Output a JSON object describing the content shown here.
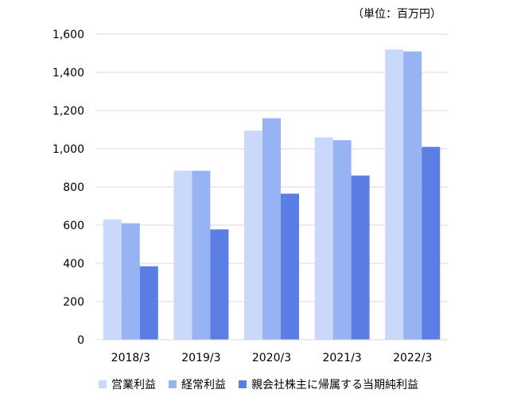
{
  "chart_data": {
    "type": "bar",
    "unit_note": "（単位：百万円）",
    "categories": [
      "2018/3",
      "2019/3",
      "2020/3",
      "2021/3",
      "2022/3"
    ],
    "series": [
      {
        "name": "営業利益",
        "color": "#c9d8fb",
        "values": [
          630,
          885,
          1095,
          1060,
          1520
        ]
      },
      {
        "name": "経常利益",
        "color": "#98b3f4",
        "values": [
          610,
          885,
          1160,
          1045,
          1510
        ]
      },
      {
        "name": "親会社株主に帰属する当期純利益",
        "color": "#5b7ee5",
        "values": [
          385,
          578,
          765,
          860,
          1010
        ]
      }
    ],
    "yticks": [
      "0",
      "200",
      "400",
      "600",
      "800",
      "1,000",
      "1,200",
      "1,400",
      "1,600"
    ],
    "ylim": [
      0,
      1600
    ],
    "grid": true,
    "legend_position": "bottom"
  }
}
